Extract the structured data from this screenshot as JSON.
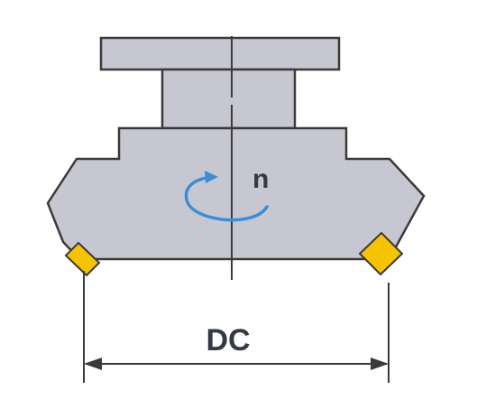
{
  "labels": {
    "rotation": "n",
    "diameter": "DC"
  },
  "colors": {
    "body_fill": "#c7c7d2",
    "outline": "#3a3a3a",
    "insert_fill": "#f5c400",
    "rotation_arrow": "#3b8ed6",
    "label_text": "#333a44",
    "background": "#ffffff"
  },
  "icons": {
    "rotation": "rotation-arrow-icon",
    "diameter": "dimension-arrow-icon"
  }
}
